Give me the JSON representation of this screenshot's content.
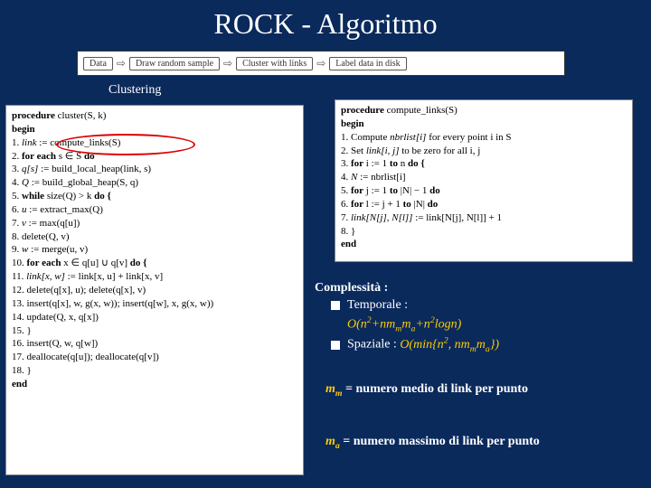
{
  "title": "ROCK - Algoritmo",
  "flow": {
    "items": [
      "Data",
      "Draw random sample",
      "Cluster with links",
      "Label data in disk"
    ],
    "arrow": "⇨",
    "bg": "#ffffff",
    "border": "#555555",
    "text_color": "#333333",
    "fontsize": 10
  },
  "clustering_label": "Clustering",
  "algo_left": {
    "lines": [
      {
        "pre": "",
        "kw": "procedure",
        "rest": " cluster(S, k)"
      },
      {
        "pre": "",
        "kw": "begin",
        "rest": ""
      },
      {
        "pre": "1.   ",
        "it": "link",
        "rest": " := compute_links(S)"
      },
      {
        "pre": "2.   ",
        "kw": "for each",
        "rest": " s ∈ S ",
        "kw2": "do"
      },
      {
        "pre": "3.      ",
        "it": "q[s]",
        "rest": " := build_local_heap(link, s)"
      },
      {
        "pre": "4.   ",
        "it": "Q",
        "rest": " := build_global_heap(S, q)"
      },
      {
        "pre": "5.   ",
        "kw": "while",
        "rest": " size(Q) > k ",
        "kw2": "do {"
      },
      {
        "pre": "6.      ",
        "it": "u",
        "rest": " := extract_max(Q)"
      },
      {
        "pre": "7.      ",
        "it": "v",
        "rest": " := max(q[u])"
      },
      {
        "pre": "8.      delete(Q, v)",
        "rest": ""
      },
      {
        "pre": "9.      ",
        "it": "w",
        "rest": " := merge(u, v)"
      },
      {
        "pre": "10.    ",
        "kw": "for each",
        "rest": " x ∈ q[u] ∪ q[v] ",
        "kw2": "do {"
      },
      {
        "pre": "11.        ",
        "it": "link[x, w]",
        "rest": " := link[x, u] + link[x, v]"
      },
      {
        "pre": "12.        delete(q[x], u); delete(q[x], v)",
        "rest": ""
      },
      {
        "pre": "13.        insert(q[x], w, g(x, w));  insert(q[w], x, g(x, w))",
        "rest": ""
      },
      {
        "pre": "14.        update(Q, x, q[x])",
        "rest": ""
      },
      {
        "pre": "15.    }",
        "rest": ""
      },
      {
        "pre": "16.    insert(Q, w, q[w])",
        "rest": ""
      },
      {
        "pre": "17.    deallocate(q[u]); deallocate(q[v])",
        "rest": ""
      },
      {
        "pre": "18. }",
        "rest": ""
      },
      {
        "pre": "",
        "kw": "end",
        "rest": ""
      }
    ]
  },
  "algo_right": {
    "lines": [
      {
        "pre": "",
        "kw": "procedure",
        "rest": " compute_links(S)"
      },
      {
        "pre": "",
        "kw": "begin",
        "rest": ""
      },
      {
        "pre": "1.   Compute ",
        "it": "nbrlist[i]",
        "rest": " for every point i in S"
      },
      {
        "pre": "2.   Set ",
        "it": "link[i, j]",
        "rest": " to be zero for all i, j"
      },
      {
        "pre": "3.   ",
        "kw": "for",
        "rest": " i := 1 ",
        "kw2": "to",
        "rest2": " n ",
        "kw3": "do {"
      },
      {
        "pre": "4.      ",
        "it": "N",
        "rest": " := nbrlist[i]"
      },
      {
        "pre": "5.      ",
        "kw": "for",
        "rest": " j := 1 ",
        "kw2": "to",
        "rest2": " |N| − 1 ",
        "kw3": "do"
      },
      {
        "pre": "6.         ",
        "kw": "for",
        "rest": " l := j + 1 ",
        "kw2": "to",
        "rest2": " |N| ",
        "kw3": "do"
      },
      {
        "pre": "7.            ",
        "it": "link[N[j], N[l]]",
        "rest": " := link[N[j], N[l]] + 1"
      },
      {
        "pre": "8.   }",
        "rest": ""
      },
      {
        "pre": "",
        "kw": "end",
        "rest": ""
      }
    ]
  },
  "complexity": {
    "heading": "Complessità :",
    "items": [
      {
        "label": "Temporale :",
        "formula_html": "O(n<span class='sup'>2</span>+nm<span class='sub'>m</span>m<span class='sub'>a</span>+n<span class='sup'>2</span>logn)"
      },
      {
        "label": "Spaziale :",
        "formula_inline_html": "O(min{n<span class='sup'>2</span>, nm<span class='sub'>m</span>m<span class='sub'>a</span>})"
      }
    ],
    "heading_color": "#ffffff",
    "formula_color": "#ffcc00",
    "fontsize": 14
  },
  "defns": [
    {
      "sym_html": "m<span class='sub'>m</span>",
      "text": " = numero medio di link per punto"
    },
    {
      "sym_html": "m<span class='sub'>a</span>",
      "text": " = numero massimo di link per punto"
    }
  ],
  "colors": {
    "background": "#0a2a5c",
    "title": "#ffffff",
    "accent": "#ffcc00",
    "ellipse": "#d00000",
    "code_bg": "#ffffff",
    "code_fg": "#000000"
  }
}
